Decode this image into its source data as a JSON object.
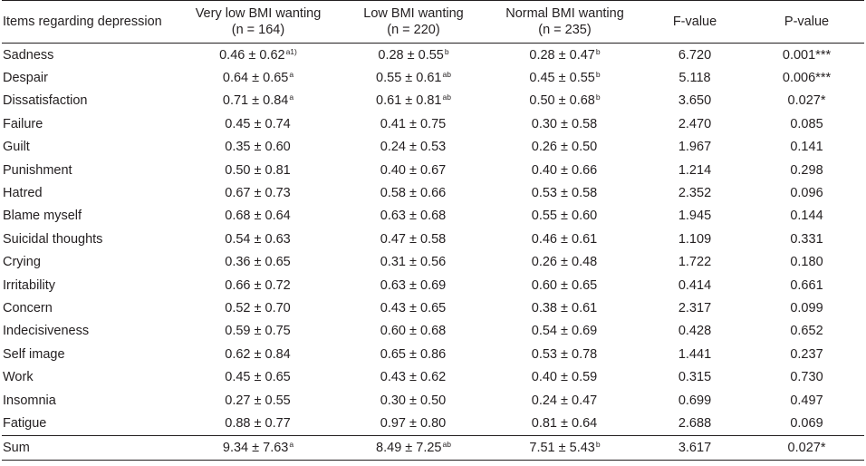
{
  "header": {
    "item": "Items regarding depression",
    "group1": "Very low BMI wanting",
    "group1_n": "(n = 164)",
    "group2": "Low BMI wanting",
    "group2_n": "(n = 220)",
    "group3": "Normal BMI wanting",
    "group3_n": "(n = 235)",
    "f": "F-value",
    "p": "P-value"
  },
  "rows": [
    {
      "item": "Sadness",
      "g1": "0.46 ± 0.62",
      "g1s": "a1)",
      "g2": "0.28 ± 0.55",
      "g2s": "b",
      "g3": "0.28 ± 0.47",
      "g3s": "b",
      "f": "6.720",
      "p": "0.001***"
    },
    {
      "item": "Despair",
      "g1": "0.64 ± 0.65",
      "g1s": "a",
      "g2": "0.55 ± 0.61",
      "g2s": "ab",
      "g3": "0.45 ± 0.55",
      "g3s": "b",
      "f": "5.118",
      "p": "0.006***"
    },
    {
      "item": "Dissatisfaction",
      "g1": "0.71 ± 0.84",
      "g1s": "a",
      "g2": "0.61 ± 0.81",
      "g2s": "ab",
      "g3": "0.50 ± 0.68",
      "g3s": "b",
      "f": "3.650",
      "p": "0.027*"
    },
    {
      "item": "Failure",
      "g1": "0.45 ± 0.74",
      "g1s": "",
      "g2": "0.41 ± 0.75",
      "g2s": "",
      "g3": "0.30 ± 0.58",
      "g3s": "",
      "f": "2.470",
      "p": "0.085"
    },
    {
      "item": "Guilt",
      "g1": "0.35 ± 0.60",
      "g1s": "",
      "g2": "0.24 ± 0.53",
      "g2s": "",
      "g3": "0.26 ± 0.50",
      "g3s": "",
      "f": "1.967",
      "p": "0.141"
    },
    {
      "item": "Punishment",
      "g1": "0.50 ± 0.81",
      "g1s": "",
      "g2": "0.40 ± 0.67",
      "g2s": "",
      "g3": "0.40 ± 0.66",
      "g3s": "",
      "f": "1.214",
      "p": "0.298"
    },
    {
      "item": "Hatred",
      "g1": "0.67 ± 0.73",
      "g1s": "",
      "g2": "0.58 ± 0.66",
      "g2s": "",
      "g3": "0.53 ± 0.58",
      "g3s": "",
      "f": "2.352",
      "p": "0.096"
    },
    {
      "item": "Blame myself",
      "g1": "0.68 ± 0.64",
      "g1s": "",
      "g2": "0.63 ± 0.68",
      "g2s": "",
      "g3": "0.55 ± 0.60",
      "g3s": "",
      "f": "1.945",
      "p": "0.144"
    },
    {
      "item": "Suicidal thoughts",
      "g1": "0.54 ± 0.63",
      "g1s": "",
      "g2": "0.47 ± 0.58",
      "g2s": "",
      "g3": "0.46 ± 0.61",
      "g3s": "",
      "f": "1.109",
      "p": "0.331"
    },
    {
      "item": "Crying",
      "g1": "0.36 ± 0.65",
      "g1s": "",
      "g2": "0.31 ± 0.56",
      "g2s": "",
      "g3": "0.26 ± 0.48",
      "g3s": "",
      "f": "1.722",
      "p": "0.180"
    },
    {
      "item": "Irritability",
      "g1": "0.66 ± 0.72",
      "g1s": "",
      "g2": "0.63 ± 0.69",
      "g2s": "",
      "g3": "0.60 ± 0.65",
      "g3s": "",
      "f": "0.414",
      "p": "0.661"
    },
    {
      "item": "Concern",
      "g1": "0.52 ± 0.70",
      "g1s": "",
      "g2": "0.43 ± 0.65",
      "g2s": "",
      "g3": "0.38 ± 0.61",
      "g3s": "",
      "f": "2.317",
      "p": "0.099"
    },
    {
      "item": "Indecisiveness",
      "g1": "0.59 ± 0.75",
      "g1s": "",
      "g2": "0.60 ± 0.68",
      "g2s": "",
      "g3": "0.54 ± 0.69",
      "g3s": "",
      "f": "0.428",
      "p": "0.652"
    },
    {
      "item": "Self image",
      "g1": "0.62 ± 0.84",
      "g1s": "",
      "g2": "0.65 ± 0.86",
      "g2s": "",
      "g3": "0.53 ± 0.78",
      "g3s": "",
      "f": "1.441",
      "p": "0.237"
    },
    {
      "item": "Work",
      "g1": "0.45 ± 0.65",
      "g1s": "",
      "g2": "0.43 ± 0.62",
      "g2s": "",
      "g3": "0.40 ± 0.59",
      "g3s": "",
      "f": "0.315",
      "p": "0.730"
    },
    {
      "item": "Insomnia",
      "g1": "0.27 ± 0.55",
      "g1s": "",
      "g2": "0.30 ± 0.50",
      "g2s": "",
      "g3": "0.24 ± 0.47",
      "g3s": "",
      "f": "0.699",
      "p": "0.497"
    },
    {
      "item": "Fatigue",
      "g1": "0.88 ± 0.77",
      "g1s": "",
      "g2": "0.97 ± 0.80",
      "g2s": "",
      "g3": "0.81 ± 0.64",
      "g3s": "",
      "f": "2.688",
      "p": "0.069"
    }
  ],
  "sum": {
    "item": "Sum",
    "g1": "9.34 ± 7.63",
    "g1s": "a",
    "g2": "8.49 ± 7.25",
    "g2s": "ab",
    "g3": "7.51 ± 5.43",
    "g3s": "b",
    "f": "3.617",
    "p": "0.027*"
  }
}
